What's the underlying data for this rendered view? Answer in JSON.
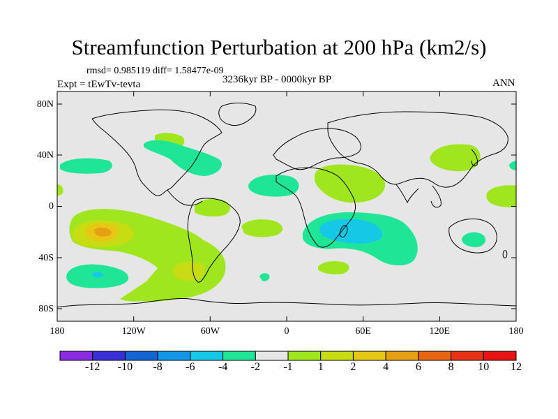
{
  "title": "Streamfunction Perturbation at 200 hPa (km2/s)",
  "stats_text": "rmsd= 0.985119 diff= 1.58477e-09",
  "experiment": "Expt = tEwTv-tevta",
  "period": "3236kyr BP - 0000kyr BP",
  "season": "ANN",
  "latitude_labels": [
    "80N",
    "40N",
    "0",
    "40S",
    "80S"
  ],
  "longitude_labels": [
    "180",
    "120W",
    "60W",
    "0",
    "60E",
    "120E",
    "180"
  ],
  "colorbar": {
    "labels": [
      "-12",
      "-10",
      "-8",
      "-6",
      "-4",
      "-2",
      "-1",
      "1",
      "2",
      "4",
      "6",
      "8",
      "10",
      "12"
    ],
    "colors": [
      "#8a2be2",
      "#3a2fd6",
      "#1464d2",
      "#1496e6",
      "#14c8e6",
      "#1ee696",
      "#e6e6e6",
      "#a0e61e",
      "#c8dc14",
      "#e6c814",
      "#e6a014",
      "#e66414",
      "#e63214",
      "#e61414"
    ]
  },
  "map_colors": {
    "ocean_neutral": "#e6e6e6",
    "pos_1_2": "#a0e61e",
    "pos_2_4": "#c8dc14",
    "pos_4_6": "#e6c814",
    "pos_6_8": "#e6a014",
    "neg_1_2": "#1ee696",
    "neg_2_4": "#14c8e6"
  }
}
